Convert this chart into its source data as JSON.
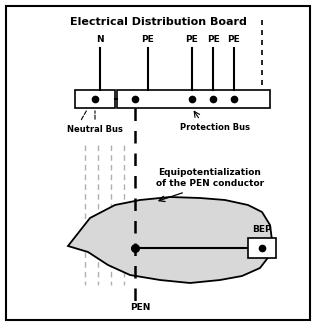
{
  "title": "Electrical Distribution Board",
  "bg_color": "#ffffff",
  "fig_width": 3.16,
  "fig_height": 3.26,
  "neutral_bus_label": "Neutral Bus",
  "protection_bus_label": "Protection Bus",
  "equipot_label": "Equipotentialization\nof the PEN conductor",
  "bep_label": "BEP",
  "pen_label": "PEN",
  "lc": "#000000",
  "dc": "#000000",
  "gray_line": "#b0b0b0",
  "shape_fill": "#d8d8d8",
  "shape_edge": "#000000"
}
